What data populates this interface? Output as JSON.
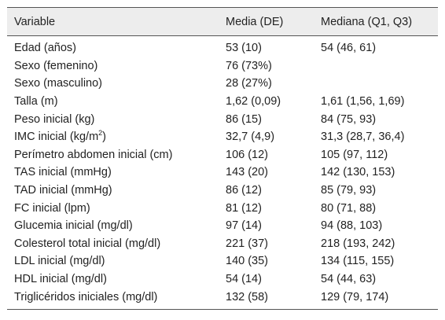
{
  "table": {
    "headers": [
      "Variable",
      "Media (DE)",
      "Mediana (Q1, Q3)"
    ],
    "rows": [
      {
        "variable": "Edad (años)",
        "media": "53 (10)",
        "mediana": "54 (46, 61)"
      },
      {
        "variable": "Sexo (femenino)",
        "media": "76 (73%)",
        "mediana": ""
      },
      {
        "variable": "Sexo (masculino)",
        "media": "28 (27%)",
        "mediana": ""
      },
      {
        "variable": "Talla (m)",
        "media": "1,62 (0,09)",
        "mediana": "1,61 (1,56, 1,69)"
      },
      {
        "variable": "Peso inicial (kg)",
        "media": "86 (15)",
        "mediana": "84 (75, 93)"
      },
      {
        "variable_prefix": "IMC inicial (kg/m",
        "variable_sup": "2",
        "variable_suffix": ")",
        "media": "32,7 (4,9)",
        "mediana": "31,3 (28,7, 36,4)"
      },
      {
        "variable": "Perímetro abdomen inicial (cm)",
        "media": "106 (12)",
        "mediana": "105 (97, 112)"
      },
      {
        "variable": "TAS inicial (mmHg)",
        "media": "143 (20)",
        "mediana": "142 (130, 153)"
      },
      {
        "variable": "TAD inicial (mmHg)",
        "media": "86 (12)",
        "mediana": "85 (79, 93)"
      },
      {
        "variable": "FC inicial (lpm)",
        "media": "81 (12)",
        "mediana": "80 (71, 88)"
      },
      {
        "variable": "Glucemia inicial (mg/dl)",
        "media": "97 (14)",
        "mediana": "94 (88, 103)"
      },
      {
        "variable": "Colesterol total inicial (mg/dl)",
        "media": "221 (37)",
        "mediana": "218 (193, 242)"
      },
      {
        "variable": "LDL inicial (mg/dl)",
        "media": "140 (35)",
        "mediana": "134 (115, 155)"
      },
      {
        "variable": "HDL inicial (mg/dl)",
        "media": "54 (14)",
        "mediana": "54 (44, 63)"
      },
      {
        "variable": "Triglicéridos iniciales (mg/dl)",
        "media": "132 (58)",
        "mediana": "129 (79, 174)"
      }
    ]
  }
}
